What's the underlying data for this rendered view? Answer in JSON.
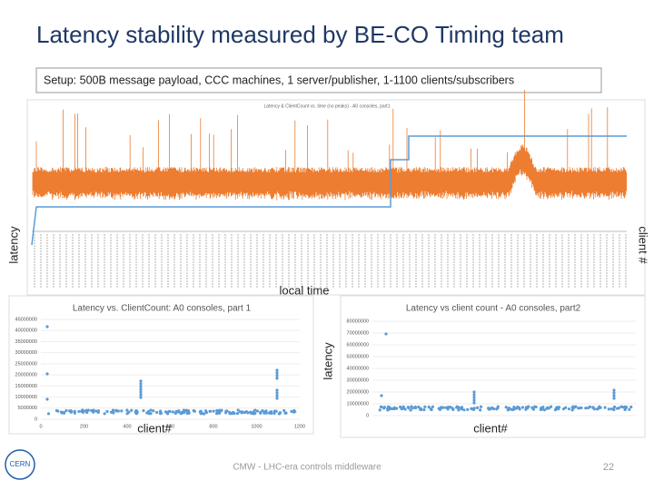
{
  "header": {
    "title": "Latency stability measured by BE-CO Timing team",
    "setup": "Setup: 500B message payload, CCC machines, 1 server/publisher, 1-1100 clients/subscribers"
  },
  "charts": [
    {
      "title": "Latency & ClientCount vs. time (no peaks) - A0 consoles, part1",
      "y_label": "latency",
      "y2_label": "client #",
      "x_label": "local time"
    },
    {
      "title": "Latency vs. ClientCount: A0 consoles, part 1",
      "x_label": "client#",
      "yticks": [
        "0",
        "5000000",
        "10000000",
        "15000000",
        "20000000",
        "25000000",
        "30000000",
        "35000000",
        "40000000",
        "45000000"
      ],
      "xticks": [
        "0",
        "200",
        "400",
        "600",
        "800",
        "1000",
        "1200"
      ]
    },
    {
      "title": "Latency vs client count - A0 consoles, part2",
      "y_label": "latency",
      "x_label": "client#",
      "yticks": [
        "0",
        "10000000",
        "20000000",
        "30000000",
        "40000000",
        "50000000",
        "60000000",
        "70000000",
        "80000000"
      ]
    }
  ],
  "footer": {
    "text": "CMW - LHC-era controls middleware",
    "page": "22",
    "logo": "CERN"
  }
}
